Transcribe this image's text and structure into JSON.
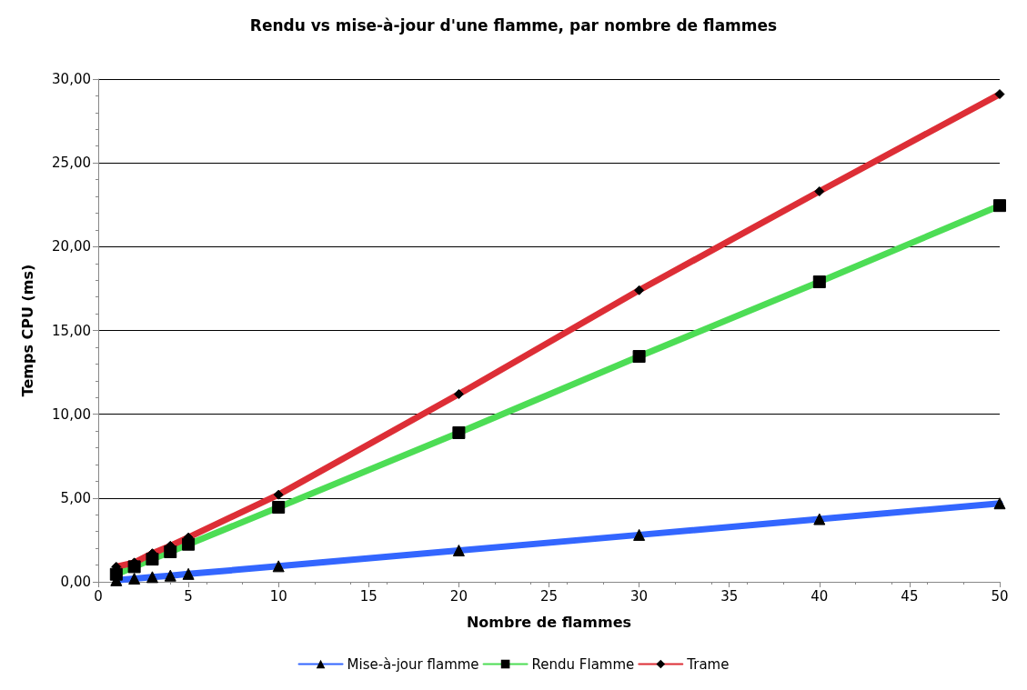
{
  "chart_data": {
    "type": "line",
    "title": "Rendu vs mise-à-jour d'une flamme, par nombre de flammes",
    "xlabel": "Nombre de flammes",
    "ylabel": "Temps CPU (ms)",
    "x": [
      1,
      2,
      3,
      4,
      5,
      10,
      20,
      30,
      40,
      50
    ],
    "series": [
      {
        "name": "Mise-à-jour flamme",
        "color": "#3366ff",
        "marker": "triangle",
        "values": [
          0.09,
          0.19,
          0.28,
          0.37,
          0.47,
          0.93,
          1.87,
          2.8,
          3.74,
          4.68
        ]
      },
      {
        "name": "Rendu Flamme",
        "color": "#4ddd55",
        "marker": "square",
        "values": [
          0.45,
          0.9,
          1.35,
          1.79,
          2.24,
          4.45,
          8.9,
          13.45,
          17.9,
          22.45
        ]
      },
      {
        "name": "Trame",
        "color": "#dd2e36",
        "marker": "diamond",
        "values": [
          0.9,
          1.15,
          1.7,
          2.15,
          2.65,
          5.2,
          11.2,
          17.4,
          23.3,
          29.1
        ]
      }
    ],
    "xlim": [
      0,
      50
    ],
    "xticks": [
      0,
      5,
      10,
      15,
      20,
      25,
      30,
      35,
      40,
      45,
      50
    ],
    "ylim": [
      0,
      30
    ],
    "yticks": [
      {
        "value": 0,
        "label": "0,00"
      },
      {
        "value": 5,
        "label": "5,00"
      },
      {
        "value": 10,
        "label": "10,00"
      },
      {
        "value": 15,
        "label": "15,00"
      },
      {
        "value": 20,
        "label": "20,00"
      },
      {
        "value": 25,
        "label": "25,00"
      },
      {
        "value": 30,
        "label": "30,00"
      }
    ],
    "grid": "y",
    "legend": "bottom"
  }
}
